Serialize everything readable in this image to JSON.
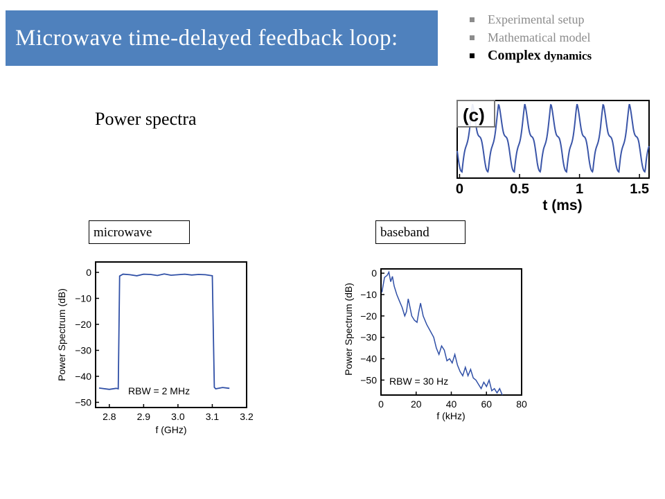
{
  "slide": {
    "title": "Microwave time-delayed feedback loop:",
    "nav": [
      {
        "label": "Experimental setup",
        "active": false
      },
      {
        "label": "Mathematical model",
        "active": false
      },
      {
        "label_big": "Complex",
        "label_small": "dynamics",
        "active": true
      }
    ],
    "subheading": "Power spectra",
    "labels": {
      "microwave": "microwave",
      "baseband": "baseband"
    }
  },
  "chart_data": [
    {
      "type": "line",
      "title": "(c)",
      "xlabel": "t (ms)",
      "ylabel": "",
      "xlim": [
        -0.02,
        1.58
      ],
      "ylim": [
        0,
        1
      ],
      "xticks": [
        0,
        0.5,
        1,
        1.5
      ],
      "xtick_labels": [
        "0",
        "0.5",
        "1",
        "1.5"
      ],
      "series": [
        {
          "period_ms": 0.218,
          "color": "#3a55a8"
        }
      ]
    },
    {
      "type": "line",
      "title": "",
      "xlabel": "f (GHz)",
      "ylabel": "Power Spectrum (dB)",
      "annotation": "RBW = 2 MHz",
      "xlim": [
        2.76,
        3.2
      ],
      "ylim": [
        -52,
        4
      ],
      "xticks": [
        2.8,
        2.9,
        3.0,
        3.1,
        3.2
      ],
      "xtick_labels": [
        "2.8",
        "2.9",
        "3.0",
        "3.1",
        "3.2"
      ],
      "yticks": [
        0,
        -10,
        -20,
        -30,
        -40,
        -50
      ],
      "ytick_labels": [
        "0",
        "−10",
        "−20",
        "−30",
        "−40",
        "−50"
      ],
      "series": [
        {
          "x": [
            2.77,
            2.8,
            2.82,
            2.826,
            2.83,
            2.84,
            2.86,
            2.88,
            2.9,
            2.92,
            2.94,
            2.96,
            2.98,
            3.0,
            3.02,
            3.04,
            3.06,
            3.08,
            3.1,
            3.106,
            3.11,
            3.13,
            3.15
          ],
          "y": [
            -44.5,
            -45,
            -44.6,
            -44.8,
            -1.4,
            -0.7,
            -0.9,
            -1.3,
            -0.7,
            -0.8,
            -1.2,
            -0.6,
            -1.1,
            -0.9,
            -0.7,
            -1.0,
            -0.8,
            -0.9,
            -1.3,
            -44.2,
            -44.8,
            -44.3,
            -44.6
          ],
          "color": "#2f4fa6"
        }
      ]
    },
    {
      "type": "line",
      "title": "",
      "xlabel": "f (kHz)",
      "ylabel": "Power Spectrum (dB)",
      "annotation": "RBW = 30 Hz",
      "xlim": [
        0,
        80
      ],
      "ylim": [
        -57,
        2
      ],
      "xticks": [
        0,
        20,
        40,
        60,
        80
      ],
      "xtick_labels": [
        "0",
        "20",
        "40",
        "60",
        "80"
      ],
      "yticks": [
        0,
        -10,
        -20,
        -30,
        -40,
        -50
      ],
      "ytick_labels": [
        "0",
        "−10",
        "−20",
        "−30",
        "−40",
        "−50"
      ],
      "series": [
        {
          "x": [
            0.5,
            2,
            3.5,
            4.5,
            5.5,
            6.5,
            7.5,
            9,
            10.5,
            12,
            13.5,
            14.5,
            15.5,
            16.5,
            17.5,
            19,
            20.5,
            21.5,
            22.5,
            24,
            26,
            28,
            30,
            31.5,
            33,
            34.5,
            36,
            37.5,
            39,
            40.5,
            42,
            43.5,
            45,
            46.5,
            48,
            49.5,
            51,
            52.5,
            54,
            55.5,
            57,
            58.5,
            60,
            61.5,
            63,
            64.5,
            66,
            67.5,
            69
          ],
          "y": [
            -9,
            -2,
            -1,
            0.5,
            -4,
            -1.5,
            -6,
            -10,
            -13,
            -16,
            -20,
            -18,
            -12,
            -16,
            -20,
            -22,
            -23,
            -18,
            -14,
            -20,
            -24,
            -27,
            -30,
            -35,
            -38,
            -34,
            -36,
            -41,
            -40,
            -42,
            -38,
            -43,
            -46,
            -48,
            -44,
            -48,
            -45,
            -49,
            -50,
            -52,
            -54,
            -51,
            -53,
            -50,
            -55,
            -54,
            -56,
            -54,
            -57
          ],
          "color": "#2f4fa6"
        }
      ]
    }
  ]
}
